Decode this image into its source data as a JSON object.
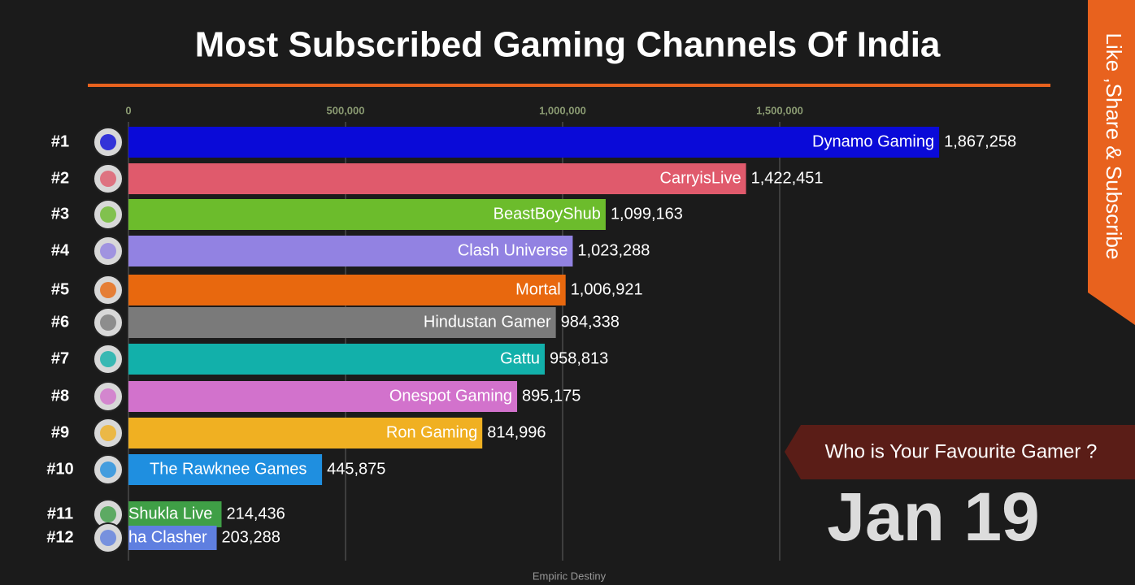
{
  "chart_data": {
    "type": "bar",
    "orientation": "horizontal",
    "title": "Most Subscribed Gaming Channels Of India",
    "ranks": [
      "#1",
      "#2",
      "#3",
      "#4",
      "#5",
      "#6",
      "#7",
      "#8",
      "#9",
      "#10",
      "#11",
      "#12"
    ],
    "categories": [
      "Dynamo Gaming",
      "CarryisLive",
      "BeastBoyShub",
      "Clash Universe",
      "Mortal",
      "Hindustan Gamer",
      "Gattu",
      "Onespot Gaming",
      "Ron Gaming",
      "The Rawknee Games",
      "Shukla Live",
      "ha Clasher"
    ],
    "values": [
      1867258,
      1422451,
      1099163,
      1023288,
      1006921,
      984338,
      958813,
      895175,
      814996,
      445875,
      214436,
      203288
    ],
    "value_labels": [
      "1,867,258",
      "1,422,451",
      "1,099,163",
      "1,023,288",
      "1,006,921",
      "984,338",
      "958,813",
      "895,175",
      "814,996",
      "445,875",
      "214,436",
      "203,288"
    ],
    "colors": [
      "#0a0ad8",
      "#e05a6c",
      "#6cbc2c",
      "#9282e2",
      "#e8680e",
      "#7a7a7a",
      "#12b0aa",
      "#d272cc",
      "#f0b022",
      "#1f8fe0",
      "#3f9f46",
      "#5f7fe0"
    ],
    "xlim": [
      0,
      2000000
    ],
    "xticks": [
      0,
      {
        "value": 500000,
        "label": "500,000"
      },
      {
        "value": 1000000,
        "label": "1,000,000"
      },
      {
        "value": 1500000,
        "label": "1,500,000"
      }
    ],
    "grid": true,
    "date_label": "Jan 19",
    "question": "Who is Your Favourite Gamer ?",
    "banner": "Like ,Share & Subscribe",
    "watermark": "Empiric Destiny"
  }
}
